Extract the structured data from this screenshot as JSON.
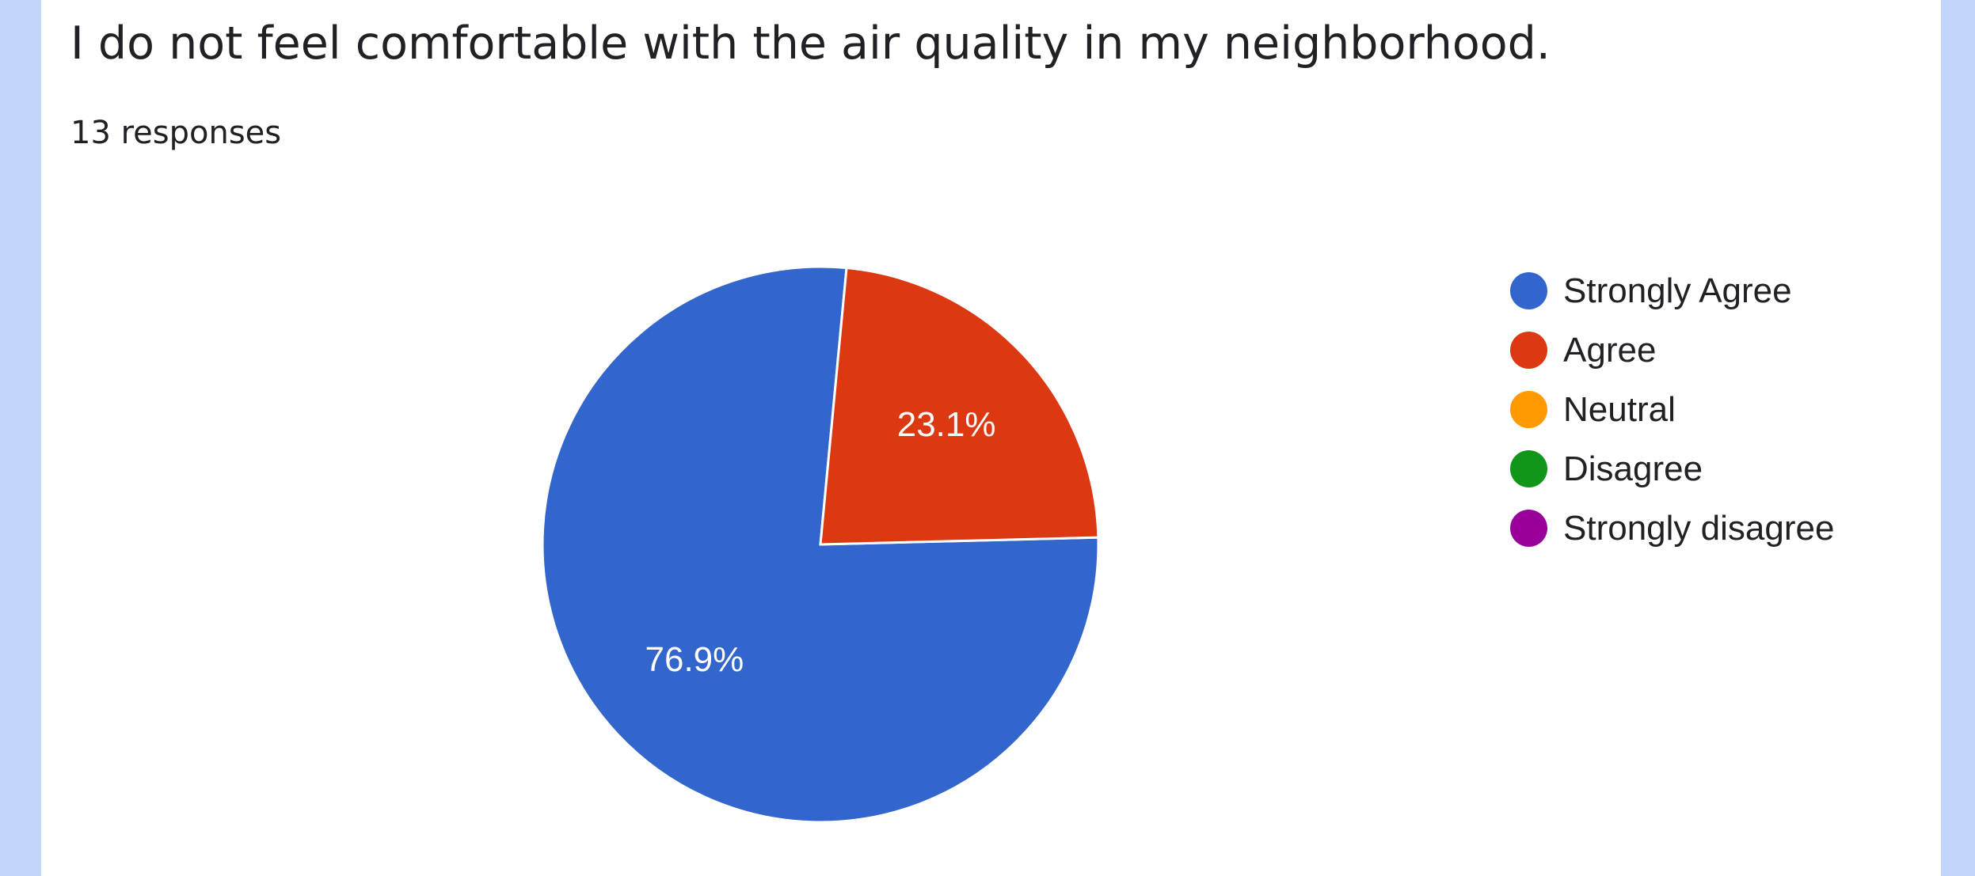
{
  "header": {
    "title": "I do not feel comfortable with the air quality in my neighborhood.",
    "responses": "13 responses"
  },
  "chart_data": {
    "type": "pie",
    "title": "I do not feel comfortable with the air quality in my neighborhood.",
    "total_responses": 13,
    "categories": [
      "Strongly Agree",
      "Agree",
      "Neutral",
      "Disagree",
      "Strongly disagree"
    ],
    "values": [
      76.9,
      23.1,
      0,
      0,
      0
    ],
    "counts": [
      10,
      3,
      0,
      0,
      0
    ],
    "labels": [
      "76.9%",
      "23.1%",
      "",
      "",
      ""
    ],
    "colors": [
      "#3366cc",
      "#dc3912",
      "#ff9900",
      "#109618",
      "#990099"
    ],
    "legend_position": "right"
  }
}
